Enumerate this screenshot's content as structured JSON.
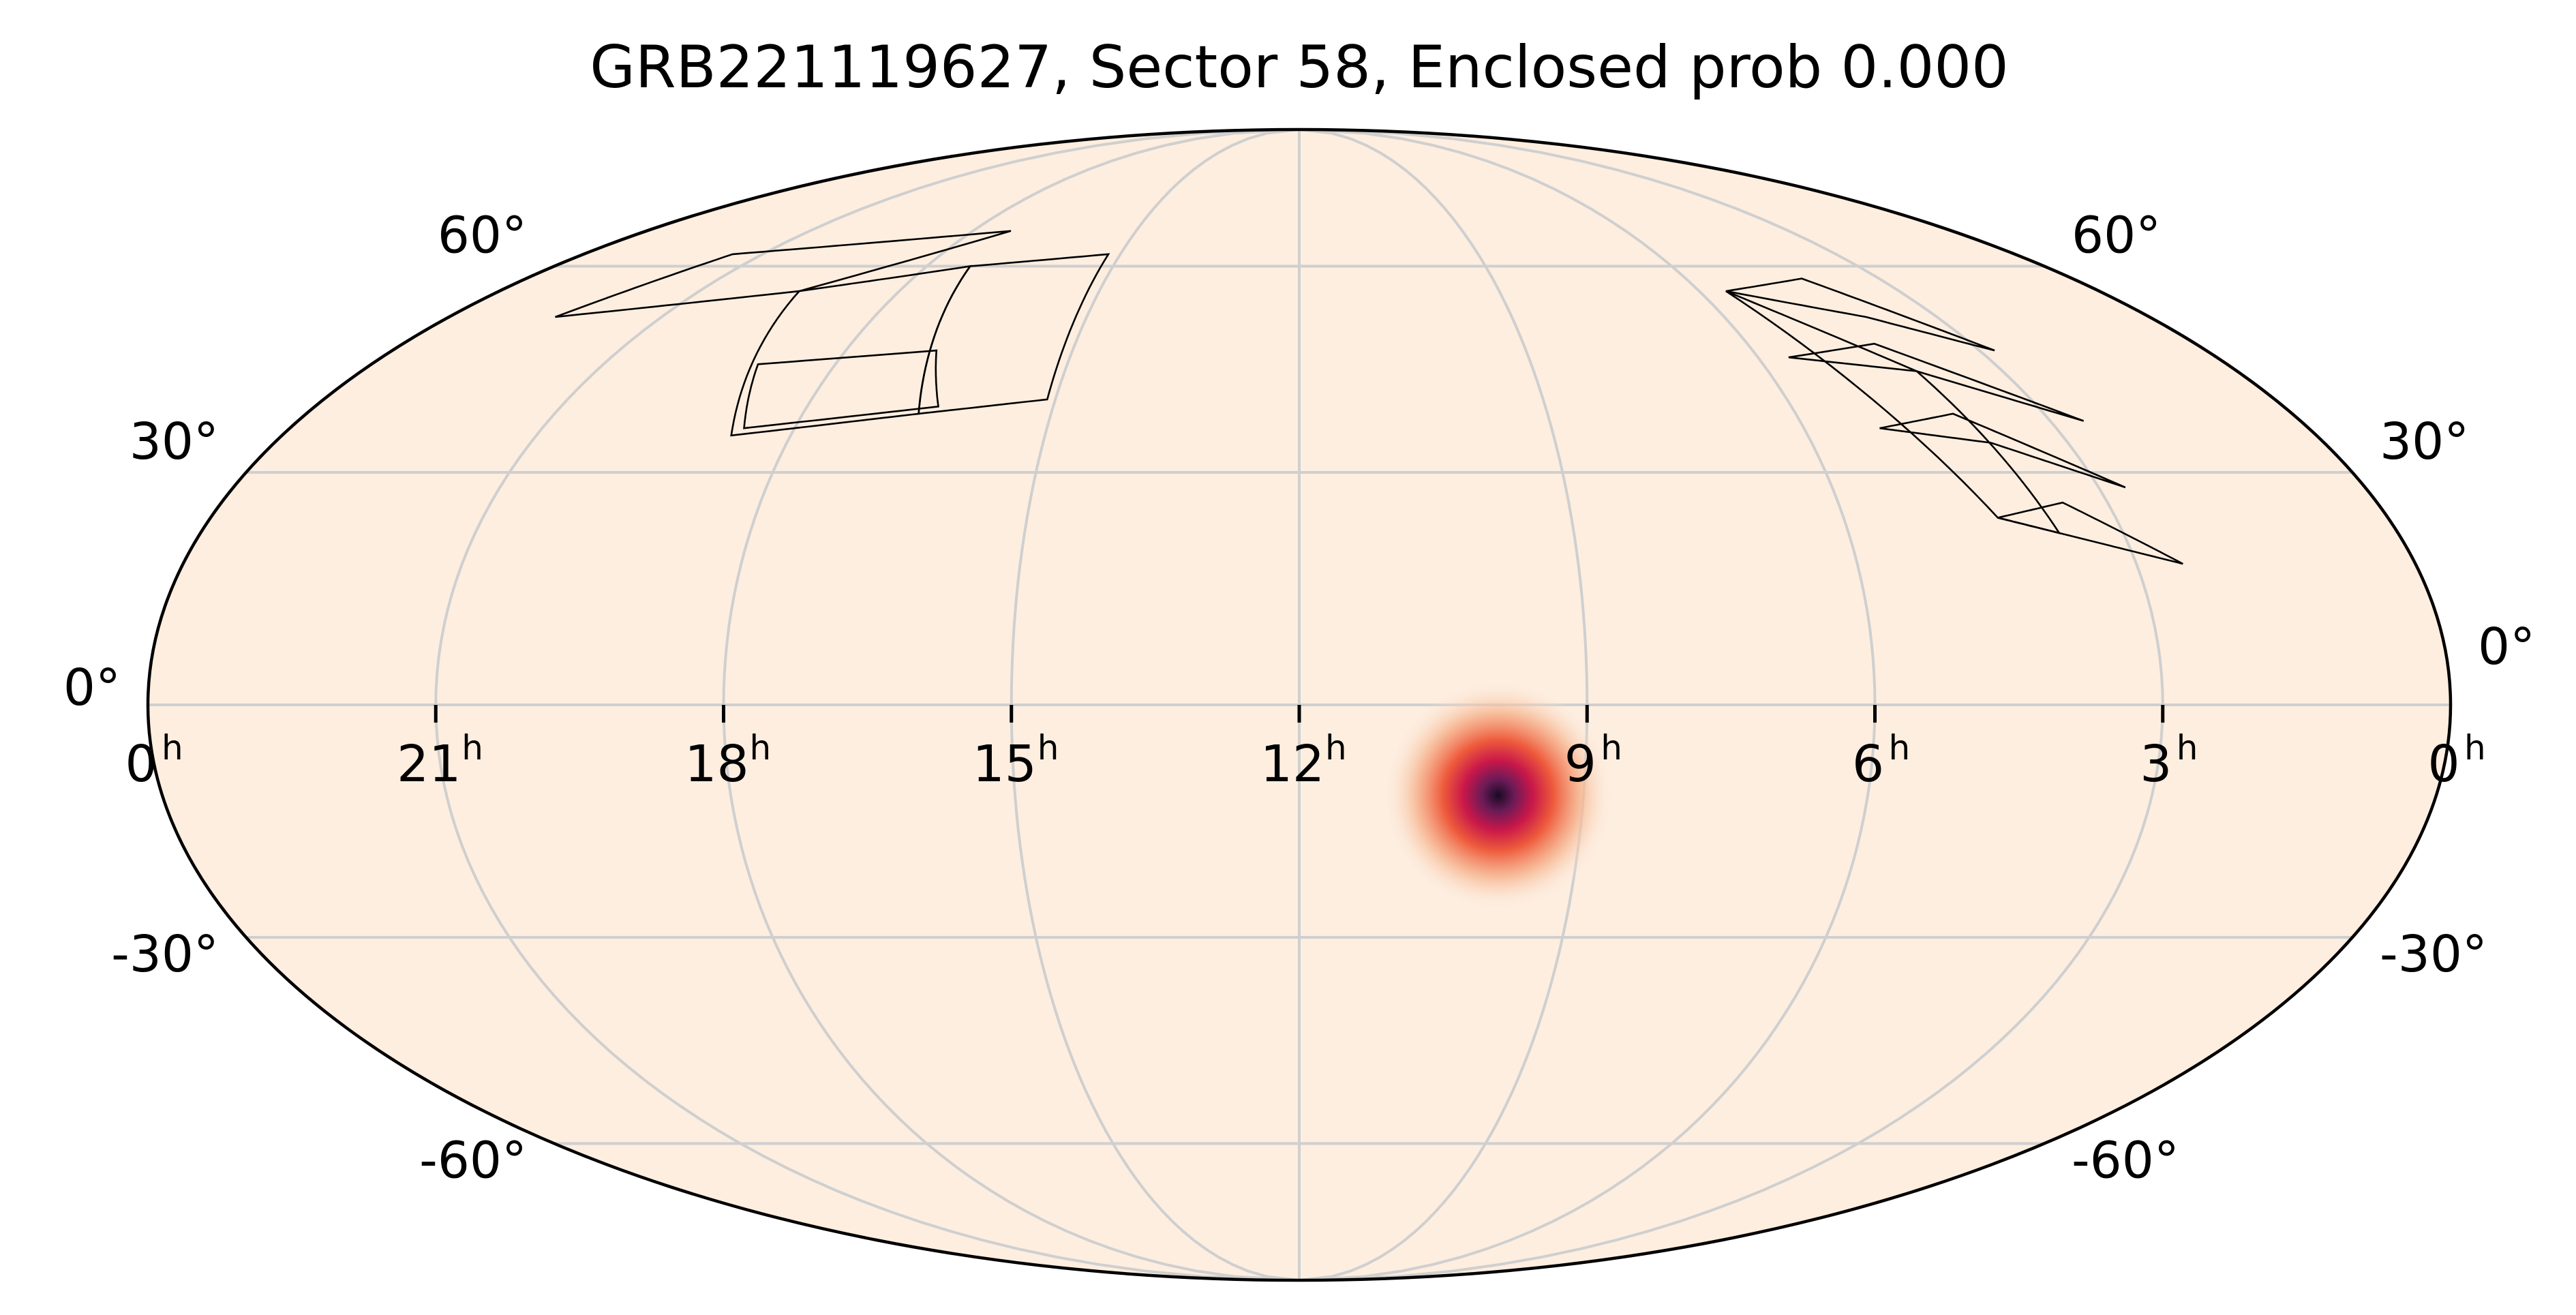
{
  "chart_data": {
    "type": "heatmap",
    "projection": "mollweide",
    "title": "GRB221119627, Sector 58, Enclosed prob 0.000",
    "background_color": "#fdeee0",
    "grid": true,
    "ra_ticks": [
      {
        "hours": 24,
        "label": "0",
        "unit": "h"
      },
      {
        "hours": 21,
        "label": "21",
        "unit": "h"
      },
      {
        "hours": 18,
        "label": "18",
        "unit": "h"
      },
      {
        "hours": 15,
        "label": "15",
        "unit": "h"
      },
      {
        "hours": 12,
        "label": "12",
        "unit": "h"
      },
      {
        "hours": 9,
        "label": "9",
        "unit": "h"
      },
      {
        "hours": 6,
        "label": "6",
        "unit": "h"
      },
      {
        "hours": 3,
        "label": "3",
        "unit": "h"
      },
      {
        "hours": 0,
        "label": "0",
        "unit": "h"
      }
    ],
    "dec_ticks": [
      {
        "deg": 60,
        "label": "60°"
      },
      {
        "deg": 30,
        "label": "30°"
      },
      {
        "deg": 0,
        "label": "0°"
      },
      {
        "deg": -30,
        "label": "-30°"
      },
      {
        "deg": -60,
        "label": "-60°"
      }
    ],
    "probability_peak": {
      "ra_hours": 9.9,
      "dec_deg": -11.5,
      "sigma_deg": 4.5
    },
    "colormap": [
      "#fdeee0",
      "#f6b48e",
      "#ee5a3b",
      "#c8174a",
      "#6b1b57",
      "#1a0a25"
    ],
    "footprint_color": "#000000",
    "footprints": [
      {
        "name": "ccd-patch-left",
        "corners": [
          [
            18.7,
            35
          ],
          [
            19.5,
            56
          ],
          [
            17.3,
            60
          ],
          [
            16.6,
            38
          ]
        ]
      },
      {
        "name": "ccd-patch-left-lower",
        "corners": [
          [
            19.0,
            45
          ],
          [
            16.8,
            47
          ],
          [
            16.4,
            39
          ],
          [
            18.6,
            36
          ]
        ]
      },
      {
        "name": "ccd-patch-left-mid",
        "corners": [
          [
            16.6,
            38
          ],
          [
            17.3,
            60
          ],
          [
            15.2,
            62
          ],
          [
            15.1,
            40
          ]
        ]
      },
      {
        "name": "ccd-patch-left-top",
        "corners": [
          [
            22.5,
            52
          ],
          [
            19.5,
            56
          ],
          [
            17.3,
            66
          ],
          [
            21.5,
            62
          ]
        ]
      },
      {
        "name": "ccd-patch-right-top",
        "corners": [
          [
            5.6,
            56
          ],
          [
            4.0,
            52
          ],
          [
            2.8,
            47
          ],
          [
            4.2,
            58
          ]
        ]
      },
      {
        "name": "ccd-patch-right-row2",
        "corners": [
          [
            5.6,
            46
          ],
          [
            4.1,
            44
          ],
          [
            2.6,
            37
          ],
          [
            4.3,
            48
          ]
        ]
      },
      {
        "name": "ccd-patch-right-row3",
        "corners": [
          [
            5.1,
            36
          ],
          [
            3.9,
            34
          ],
          [
            2.7,
            28
          ],
          [
            4.1,
            38
          ]
        ]
      },
      {
        "name": "ccd-patch-right-row4",
        "corners": [
          [
            4.3,
            24
          ],
          [
            3.7,
            22
          ],
          [
            2.5,
            18
          ],
          [
            3.5,
            26
          ]
        ]
      },
      {
        "name": "ccd-patch-right-col",
        "corners": [
          [
            5.6,
            56
          ],
          [
            4.1,
            44
          ],
          [
            3.7,
            22
          ],
          [
            4.3,
            24
          ]
        ]
      }
    ]
  }
}
